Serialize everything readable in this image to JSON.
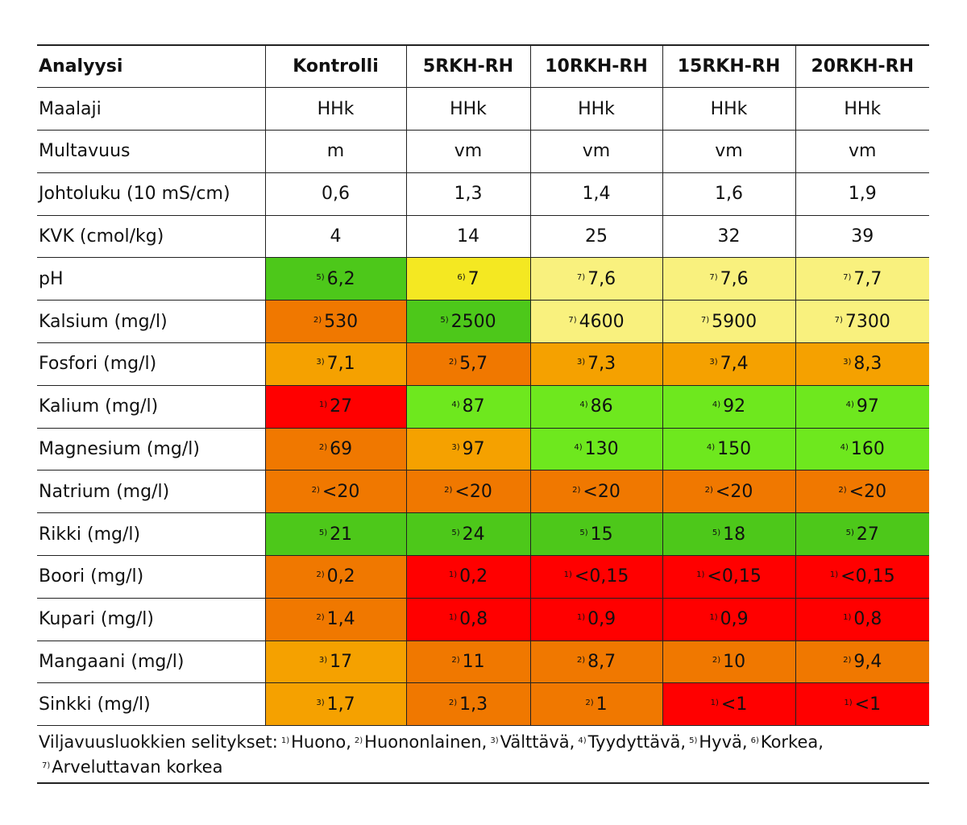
{
  "colors": {
    "1": "#ff0000",
    "2": "#f07800",
    "3": "#f5a100",
    "4": "#6ee81e",
    "5": "#4dc81a",
    "6": "#f4e822",
    "7": "#f9f17e"
  },
  "header": [
    "Analyysi",
    "Kontrolli",
    "5RKH-RH",
    "10RKH-RH",
    "15RKH-RH",
    "20RKH-RH"
  ],
  "rows": [
    {
      "label": "Maalaji",
      "cells": [
        {
          "v": "HHk"
        },
        {
          "v": "HHk"
        },
        {
          "v": "HHk"
        },
        {
          "v": "HHk"
        },
        {
          "v": "HHk"
        }
      ]
    },
    {
      "label": "Multavuus",
      "cells": [
        {
          "v": "m"
        },
        {
          "v": "vm"
        },
        {
          "v": "vm"
        },
        {
          "v": "vm"
        },
        {
          "v": "vm"
        }
      ]
    },
    {
      "label": "Johtoluku (10 mS/cm)",
      "cells": [
        {
          "v": "0,6"
        },
        {
          "v": "1,3"
        },
        {
          "v": "1,4"
        },
        {
          "v": "1,6"
        },
        {
          "v": "1,9"
        }
      ]
    },
    {
      "label": "KVK (cmol/kg)",
      "cells": [
        {
          "v": "4"
        },
        {
          "v": "14"
        },
        {
          "v": "25"
        },
        {
          "v": "32"
        },
        {
          "v": "39"
        }
      ]
    },
    {
      "label": "pH",
      "cells": [
        {
          "c": "5",
          "sup": "5)",
          "v": "6,2"
        },
        {
          "c": "6",
          "sup": "6)",
          "v": "7"
        },
        {
          "c": "7",
          "sup": "7)",
          "v": "7,6"
        },
        {
          "c": "7",
          "sup": "7)",
          "v": "7,6"
        },
        {
          "c": "7",
          "sup": "7)",
          "v": "7,7"
        }
      ]
    },
    {
      "label": "Kalsium (mg/l)",
      "cells": [
        {
          "c": "2",
          "sup": "2)",
          "v": "530"
        },
        {
          "c": "5",
          "sup": "5)",
          "v": "2500"
        },
        {
          "c": "7",
          "sup": "7)",
          "v": "4600"
        },
        {
          "c": "7",
          "sup": "7)",
          "v": "5900"
        },
        {
          "c": "7",
          "sup": "7)",
          "v": "7300"
        }
      ]
    },
    {
      "label": "Fosfori (mg/l)",
      "cells": [
        {
          "c": "3",
          "sup": "3)",
          "v": "7,1"
        },
        {
          "c": "2",
          "sup": "2)",
          "v": "5,7"
        },
        {
          "c": "3",
          "sup": "3)",
          "v": "7,3"
        },
        {
          "c": "3",
          "sup": "3)",
          "v": "7,4"
        },
        {
          "c": "3",
          "sup": "3)",
          "v": "8,3"
        }
      ]
    },
    {
      "label": "Kalium (mg/l)",
      "cells": [
        {
          "c": "1",
          "sup": "1)",
          "v": "27"
        },
        {
          "c": "4",
          "sup": "4)",
          "v": "87"
        },
        {
          "c": "4",
          "sup": "4)",
          "v": "86"
        },
        {
          "c": "4",
          "sup": "4)",
          "v": "92"
        },
        {
          "c": "4",
          "sup": "4)",
          "v": "97"
        }
      ]
    },
    {
      "label": "Magnesium (mg/l)",
      "cells": [
        {
          "c": "2",
          "sup": "2)",
          "v": "69"
        },
        {
          "c": "3",
          "sup": "3)",
          "v": "97"
        },
        {
          "c": "4",
          "sup": "4)",
          "v": "130"
        },
        {
          "c": "4",
          "sup": "4)",
          "v": "150"
        },
        {
          "c": "4",
          "sup": "4)",
          "v": "160"
        }
      ]
    },
    {
      "label": "Natrium (mg/l)",
      "cells": [
        {
          "c": "2",
          "sup": "2)",
          "v": "<20"
        },
        {
          "c": "2",
          "sup": "2)",
          "v": "<20"
        },
        {
          "c": "2",
          "sup": "2)",
          "v": "<20"
        },
        {
          "c": "2",
          "sup": "2)",
          "v": "<20"
        },
        {
          "c": "2",
          "sup": "2)",
          "v": "<20"
        }
      ]
    },
    {
      "label": "Rikki (mg/l)",
      "cells": [
        {
          "c": "5",
          "sup": "5)",
          "v": "21"
        },
        {
          "c": "5",
          "sup": "5)",
          "v": "24"
        },
        {
          "c": "5",
          "sup": "5)",
          "v": "15"
        },
        {
          "c": "5",
          "sup": "5)",
          "v": "18"
        },
        {
          "c": "5",
          "sup": "5)",
          "v": "27"
        }
      ]
    },
    {
      "label": "Boori (mg/l)",
      "cells": [
        {
          "c": "2",
          "sup": "2)",
          "v": "0,2"
        },
        {
          "c": "1",
          "sup": "1)",
          "v": "0,2"
        },
        {
          "c": "1",
          "sup": "1)",
          "v": "<0,15"
        },
        {
          "c": "1",
          "sup": "1)",
          "v": "<0,15"
        },
        {
          "c": "1",
          "sup": "1)",
          "v": "<0,15"
        }
      ]
    },
    {
      "label": "Kupari (mg/l)",
      "cells": [
        {
          "c": "2",
          "sup": "2)",
          "v": "1,4"
        },
        {
          "c": "1",
          "sup": "1)",
          "v": "0,8"
        },
        {
          "c": "1",
          "sup": "1)",
          "v": "0,9"
        },
        {
          "c": "1",
          "sup": "1)",
          "v": "0,9"
        },
        {
          "c": "1",
          "sup": "1)",
          "v": "0,8"
        }
      ]
    },
    {
      "label": "Mangaani (mg/l)",
      "cells": [
        {
          "c": "3",
          "sup": "3)",
          "v": "17"
        },
        {
          "c": "2",
          "sup": "2)",
          "v": "11"
        },
        {
          "c": "2",
          "sup": "2)",
          "v": "8,7"
        },
        {
          "c": "2",
          "sup": "2)",
          "v": "10"
        },
        {
          "c": "2",
          "sup": "2)",
          "v": "9,4"
        }
      ]
    },
    {
      "label": "Sinkki (mg/l)",
      "cells": [
        {
          "c": "3",
          "sup": "3)",
          "v": "1,7"
        },
        {
          "c": "2",
          "sup": "2)",
          "v": "1,3"
        },
        {
          "c": "2",
          "sup": "2)",
          "v": "1"
        },
        {
          "c": "1",
          "sup": "1)",
          "v": "<1"
        },
        {
          "c": "1",
          "sup": "1)",
          "v": "<1"
        }
      ]
    }
  ],
  "footnote": {
    "intro": "Viljavuusluokkien selitykset:",
    "items": [
      {
        "sup": "1)",
        "text": "Huono,"
      },
      {
        "sup": "2)",
        "text": "Huononlainen,"
      },
      {
        "sup": "3)",
        "text": "Välttävä,"
      },
      {
        "sup": "4)",
        "text": "Tyydyttävä,"
      },
      {
        "sup": "5)",
        "text": "Hyvä,"
      },
      {
        "sup": "6)",
        "text": "Korkea,"
      },
      {
        "sup": "7)",
        "text": "Arveluttavan korkea"
      }
    ]
  }
}
